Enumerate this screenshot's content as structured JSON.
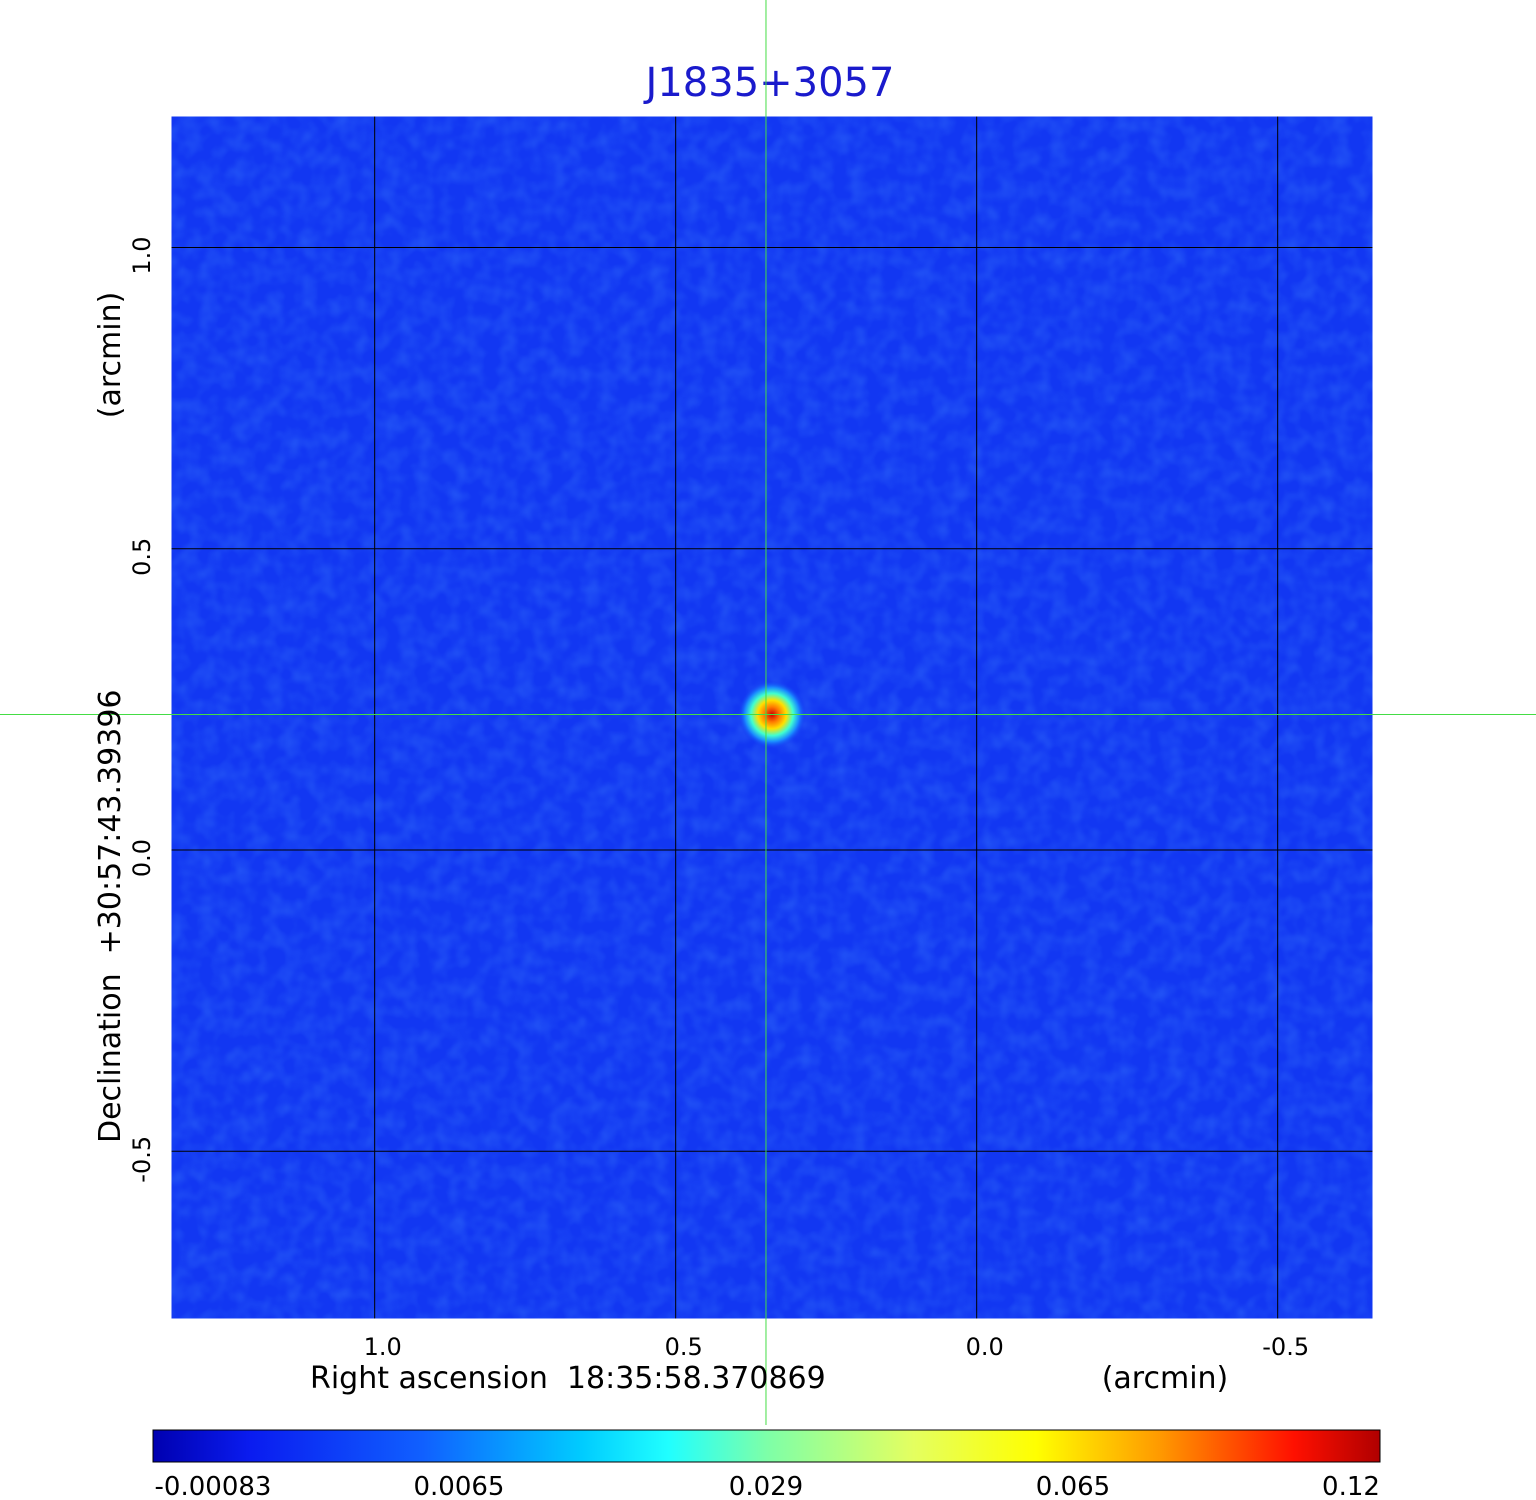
{
  "chart_data": {
    "type": "heatmap",
    "title": "J1835+3057",
    "xlabel": "Right ascension  18:35:58.370869",
    "xlabel_unit": "(arcmin)",
    "ylabel": "Declination  +30:57:43.39396",
    "ylabel_unit": "(arcmin)",
    "x_ticks": [
      "1.0",
      "0.5",
      "0.0",
      "-0.5"
    ],
    "x_tick_values": [
      1.0,
      0.5,
      0.0,
      -0.5
    ],
    "y_ticks": [
      "1.0",
      "0.5",
      "0.0",
      "-0.5"
    ],
    "y_tick_values": [
      1.0,
      0.5,
      0.0,
      -0.5
    ],
    "xlim": [
      1.34,
      -0.66
    ],
    "ylim": [
      -0.78,
      1.22
    ],
    "grid": true,
    "crosshair": {
      "x": 0.35,
      "y": 0.225
    },
    "source_peak": {
      "x": 0.34,
      "y": 0.225,
      "value": 0.12
    },
    "colorbar": {
      "position": "bottom",
      "tick_labels": [
        "-0.00083",
        "0.0065",
        "0.029",
        "0.065",
        "0.12"
      ],
      "tick_values": [
        -0.00083,
        0.0065,
        0.029,
        0.065,
        0.12
      ],
      "colormap": "jet"
    }
  },
  "colors": {
    "background_field": "#1237f2",
    "grid": "#000000",
    "crosshair": "#44dd44",
    "title": "#1a1acc"
  }
}
